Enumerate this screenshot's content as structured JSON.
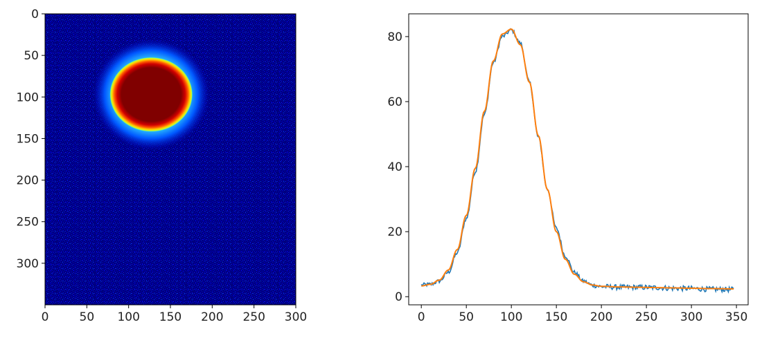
{
  "chart_data": [
    {
      "type": "heatmap",
      "colormap": "jet",
      "image_size": {
        "x": 300,
        "y": 350
      },
      "xlim": [
        0,
        300
      ],
      "ylim": [
        350,
        0
      ],
      "xticks": [
        0,
        50,
        100,
        150,
        200,
        250,
        300
      ],
      "yticks": [
        0,
        50,
        100,
        150,
        200,
        250,
        300
      ],
      "xtick_labels": [
        "0",
        "50",
        "100",
        "150",
        "200",
        "250",
        "300"
      ],
      "ytick_labels": [
        "0",
        "50",
        "100",
        "150",
        "200",
        "250",
        "300"
      ],
      "blob": {
        "center_x": 127,
        "center_y": 97,
        "saturated_core_radius_x": 42,
        "saturated_core_radius_y": 38,
        "halo_radius": 65
      },
      "background_level": "dark blue noise",
      "grid": false
    },
    {
      "type": "line",
      "xlim": [
        -14,
        363
      ],
      "ylim": [
        -2.5,
        87
      ],
      "xticks": [
        0,
        50,
        100,
        150,
        200,
        250,
        300,
        350
      ],
      "yticks": [
        0,
        20,
        40,
        60,
        80
      ],
      "xtick_labels": [
        "0",
        "50",
        "100",
        "150",
        "200",
        "250",
        "300",
        "350"
      ],
      "ytick_labels": [
        "0",
        "20",
        "40",
        "60",
        "80"
      ],
      "grid": false,
      "series": [
        {
          "style": "noisy data",
          "color": "#1f77b4",
          "x_range": [
            0,
            347
          ],
          "x": [
            0,
            10,
            20,
            30,
            40,
            50,
            60,
            70,
            80,
            90,
            100,
            110,
            120,
            130,
            140,
            150,
            160,
            170,
            180,
            190,
            200,
            220,
            240,
            260,
            280,
            300,
            320,
            347
          ],
          "y": [
            3.6,
            3.8,
            4.8,
            7.5,
            13.5,
            24,
            38.5,
            56,
            72,
            80,
            82,
            78,
            66,
            49,
            33,
            21,
            12.5,
            7.5,
            4.8,
            3.6,
            3.1,
            2.9,
            2.9,
            2.8,
            2.6,
            2.5,
            2.3,
            2.2
          ]
        },
        {
          "style": "fitted gaussian",
          "color": "#ff7f0e",
          "x": [
            0,
            10,
            20,
            30,
            40,
            50,
            60,
            70,
            80,
            90,
            100,
            110,
            120,
            130,
            140,
            150,
            160,
            170,
            180,
            190,
            200,
            220,
            240,
            260,
            280,
            300,
            320,
            347
          ],
          "y": [
            3.3,
            3.8,
            5.1,
            8.2,
            14.5,
            25,
            39.5,
            57,
            72.5,
            80.8,
            82.3,
            77.5,
            66,
            49.5,
            33,
            20,
            11.5,
            6.9,
            4.6,
            3.6,
            3.2,
            3.0,
            2.9,
            2.8,
            2.7,
            2.6,
            2.5,
            2.4
          ]
        }
      ]
    }
  ]
}
